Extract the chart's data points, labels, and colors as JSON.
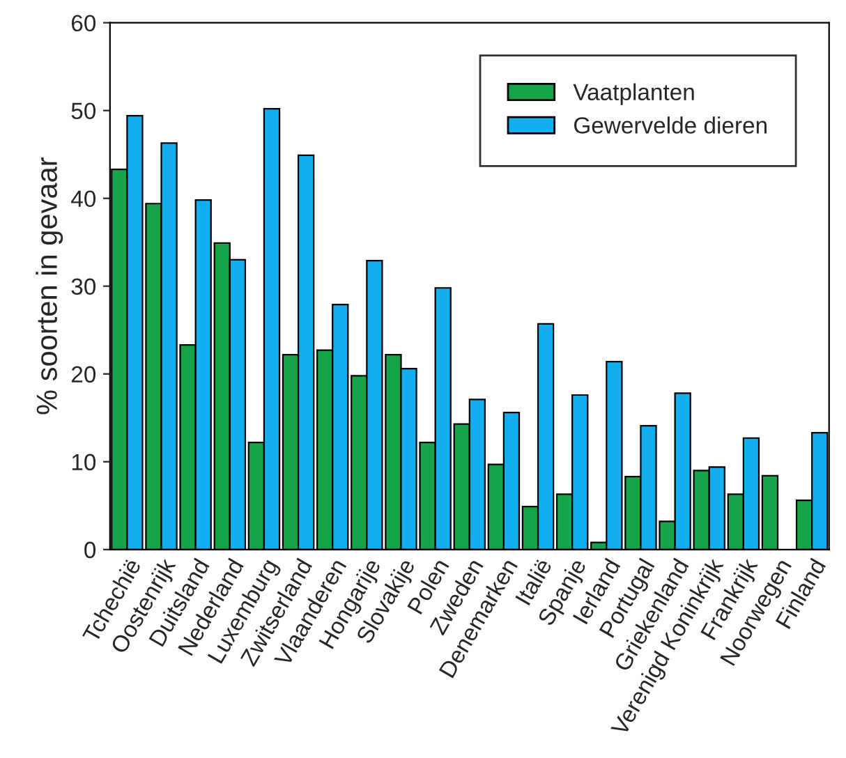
{
  "chart_data": {
    "type": "bar",
    "ylabel": "% soorten in gevaar",
    "categories": [
      "Tchechië",
      "Oostenrijk",
      "Duitsland",
      "Nederland",
      "Luxemburg",
      "Zwitserland",
      "Vlaanderen",
      "Hongarije",
      "Slovakije",
      "Polen",
      "Zweden",
      "Denemarken",
      "Italië",
      "Spanje",
      "Ierland",
      "Portugal",
      "Griekenland",
      "Verenigd Koninkrijk",
      "Frankrijk",
      "Noorwegen",
      "Finland"
    ],
    "series": [
      {
        "name": "Vaatplanten",
        "color": "#16a34a",
        "values": [
          43.3,
          39.4,
          23.3,
          34.9,
          12.2,
          22.2,
          22.7,
          19.8,
          22.2,
          12.2,
          14.3,
          9.7,
          4.9,
          6.3,
          0.8,
          8.3,
          3.2,
          9.0,
          6.3,
          8.4,
          5.6
        ]
      },
      {
        "name": "Gewervelde dieren",
        "color": "#12aef0",
        "values": [
          49.4,
          46.3,
          39.8,
          33.0,
          50.2,
          44.9,
          27.9,
          32.9,
          20.6,
          29.8,
          17.1,
          15.6,
          25.7,
          17.6,
          21.4,
          14.1,
          17.8,
          9.4,
          12.7,
          null,
          13.3
        ]
      }
    ],
    "ylim": [
      0,
      60
    ],
    "yticks": [
      0,
      10,
      20,
      30,
      40,
      50,
      60
    ],
    "grid": false,
    "legend": "top right"
  }
}
